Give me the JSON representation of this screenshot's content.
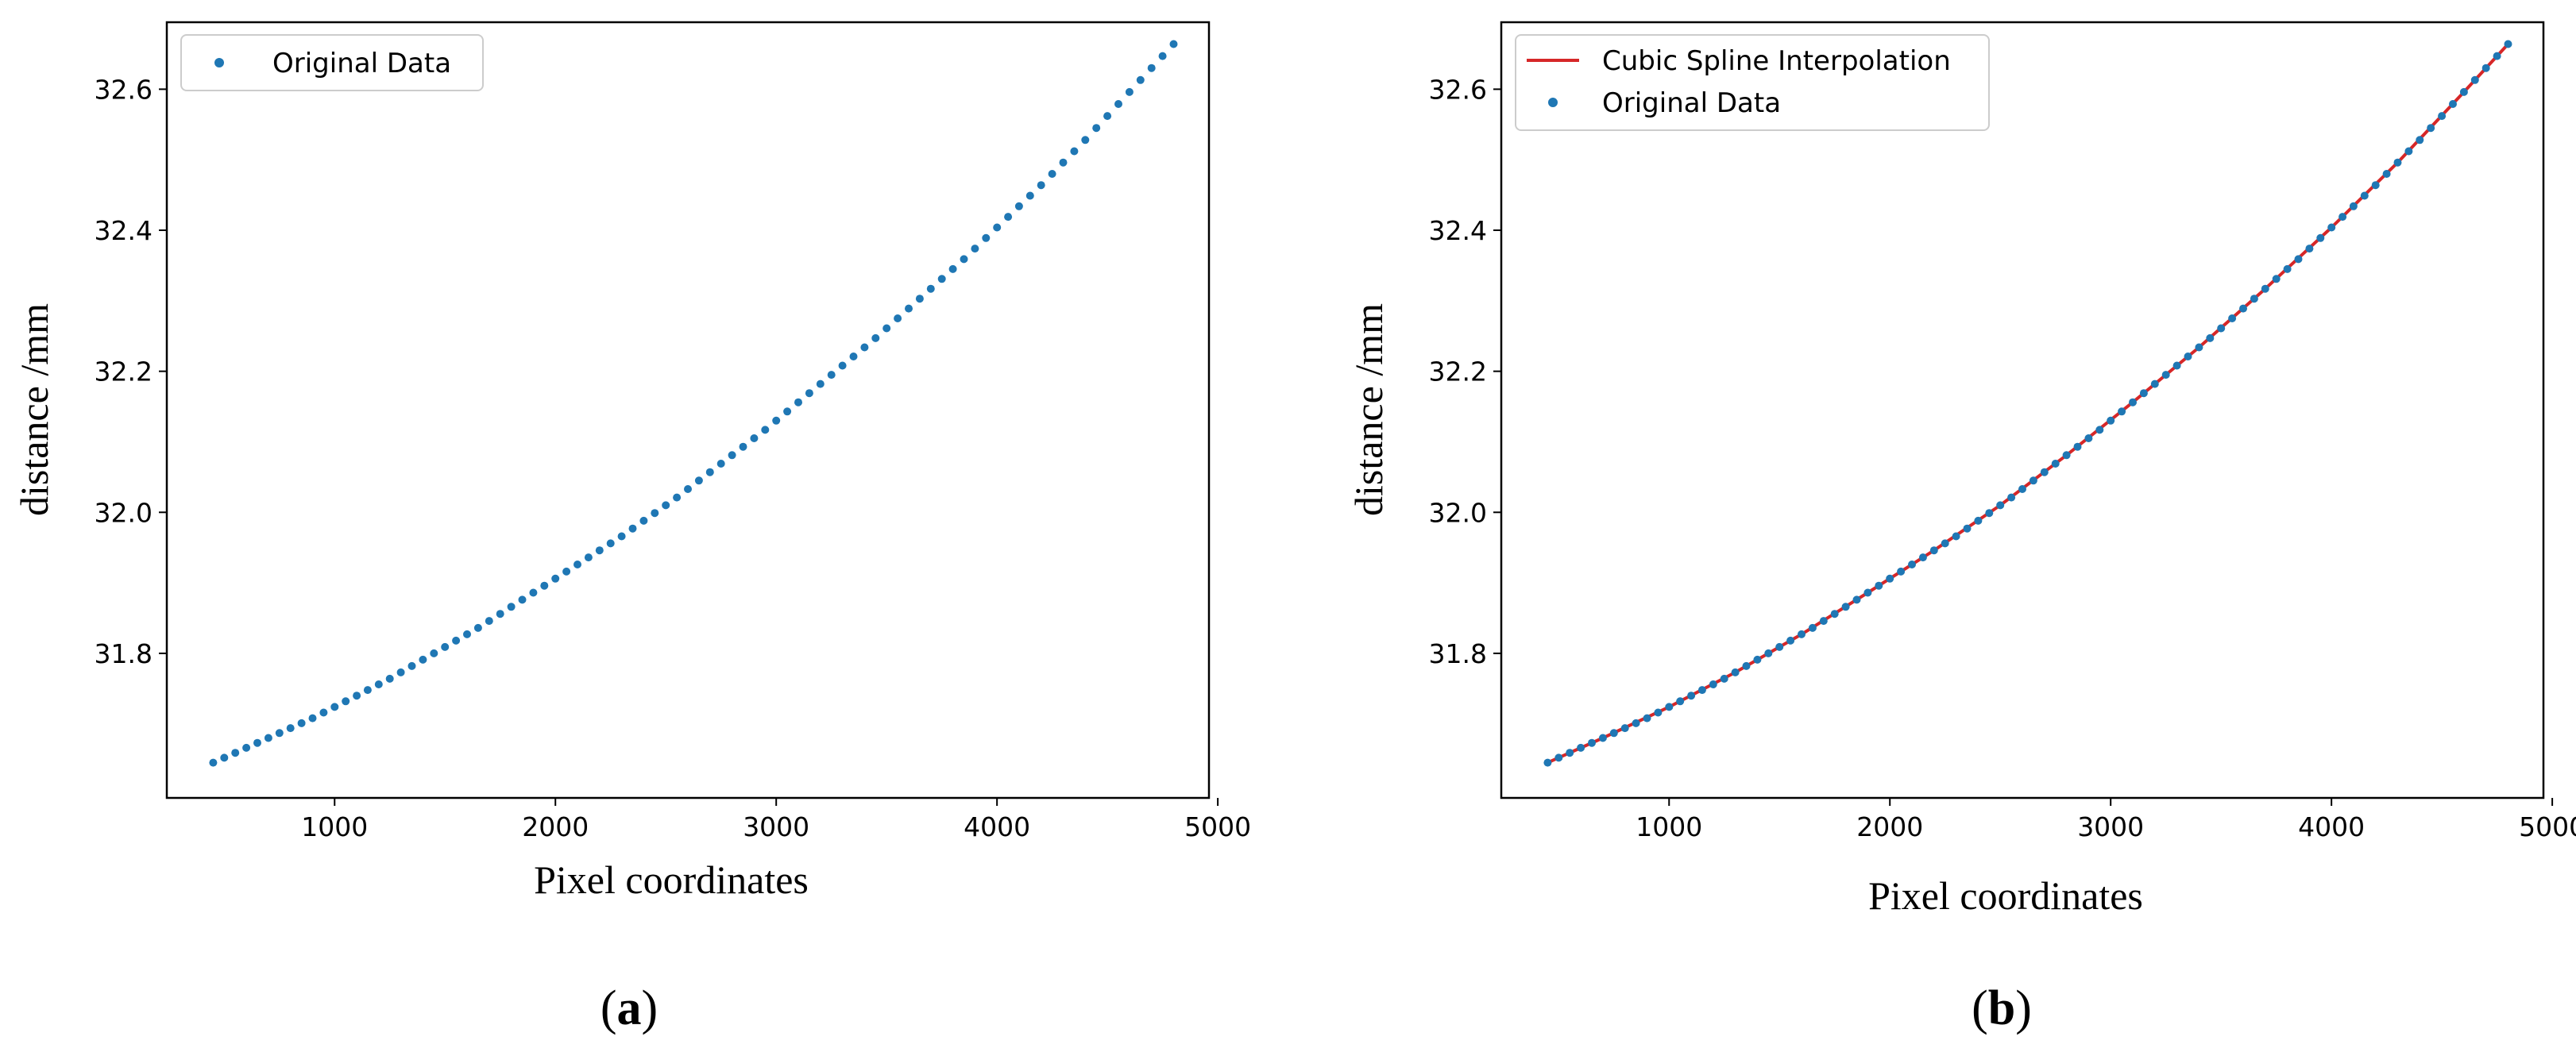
{
  "chart_data": [
    {
      "type": "scatter",
      "panel_label": "a",
      "xlabel": "Pixel coordinates",
      "ylabel": "distance /mm",
      "xlim": [
        240,
        4960
      ],
      "ylim": [
        31.595,
        32.695
      ],
      "xticks": [
        1000,
        2000,
        3000,
        4000,
        5000
      ],
      "yticks": [
        31.8,
        32.0,
        32.2,
        32.4,
        32.6
      ],
      "ytick_labels": [
        "31.8",
        "32.0",
        "32.2",
        "32.4",
        "32.6"
      ],
      "grid": false,
      "legend_position": "top-left",
      "series": [
        {
          "name": "Original Data",
          "kind": "points",
          "color": "#1f77b4",
          "x": [
            450,
            500,
            550,
            600,
            650,
            700,
            750,
            800,
            850,
            900,
            950,
            1000,
            1050,
            1100,
            1150,
            1200,
            1250,
            1300,
            1350,
            1400,
            1450,
            1500,
            1550,
            1600,
            1650,
            1700,
            1750,
            1800,
            1850,
            1900,
            1950,
            2000,
            2050,
            2100,
            2150,
            2200,
            2250,
            2300,
            2350,
            2400,
            2450,
            2500,
            2550,
            2600,
            2650,
            2700,
            2750,
            2800,
            2850,
            2900,
            2950,
            3000,
            3050,
            3100,
            3150,
            3200,
            3250,
            3300,
            3350,
            3400,
            3450,
            3500,
            3550,
            3600,
            3650,
            3700,
            3750,
            3800,
            3850,
            3900,
            3950,
            4000,
            4050,
            4100,
            4150,
            4200,
            4250,
            4300,
            4350,
            4400,
            4450,
            4500,
            4550,
            4600,
            4650,
            4700,
            4750,
            4800
          ],
          "y": [
            31.645,
            31.652,
            31.659,
            31.666,
            31.673,
            31.68,
            31.687,
            31.694,
            31.701,
            31.708,
            31.716,
            31.724,
            31.732,
            31.74,
            31.748,
            31.756,
            31.764,
            31.773,
            31.782,
            31.791,
            31.8,
            31.809,
            31.818,
            31.827,
            31.836,
            31.846,
            31.856,
            31.866,
            31.876,
            31.886,
            31.896,
            31.906,
            31.916,
            31.926,
            31.936,
            31.946,
            31.956,
            31.966,
            31.977,
            31.988,
            31.999,
            32.01,
            32.021,
            32.033,
            32.045,
            32.057,
            32.069,
            32.081,
            32.093,
            32.105,
            32.117,
            32.13,
            32.143,
            32.156,
            32.169,
            32.182,
            32.195,
            32.208,
            32.221,
            32.234,
            32.247,
            32.261,
            32.275,
            32.289,
            32.303,
            32.317,
            32.331,
            32.345,
            32.359,
            32.374,
            32.389,
            32.404,
            32.419,
            32.434,
            32.449,
            32.464,
            32.48,
            32.496,
            32.512,
            32.528,
            32.545,
            32.562,
            32.579,
            32.596,
            32.613,
            32.63,
            32.647,
            32.664
          ]
        }
      ]
    },
    {
      "type": "line",
      "panel_label": "b",
      "xlabel": "Pixel coordinates",
      "ylabel": "distance /mm",
      "xlim": [
        240,
        4960
      ],
      "ylim": [
        31.595,
        32.695
      ],
      "xticks": [
        1000,
        2000,
        3000,
        4000,
        5000
      ],
      "yticks": [
        31.8,
        32.0,
        32.2,
        32.4,
        32.6
      ],
      "ytick_labels": [
        "31.8",
        "32.0",
        "32.2",
        "32.4",
        "32.6"
      ],
      "grid": false,
      "legend_position": "top-left",
      "series": [
        {
          "name": "Cubic Spline Interpolation",
          "kind": "line",
          "color": "#d62728",
          "x": [
            450,
            700,
            1000,
            1300,
            1600,
            1900,
            2200,
            2500,
            2800,
            3100,
            3400,
            3700,
            4000,
            4300,
            4600,
            4800
          ],
          "y": [
            31.645,
            31.68,
            31.724,
            31.773,
            31.827,
            31.886,
            31.946,
            32.01,
            32.081,
            32.156,
            32.234,
            32.317,
            32.404,
            32.496,
            32.596,
            32.664
          ]
        },
        {
          "name": "Original Data",
          "kind": "points",
          "color": "#1f77b4",
          "x": [
            450,
            500,
            550,
            600,
            650,
            700,
            750,
            800,
            850,
            900,
            950,
            1000,
            1050,
            1100,
            1150,
            1200,
            1250,
            1300,
            1350,
            1400,
            1450,
            1500,
            1550,
            1600,
            1650,
            1700,
            1750,
            1800,
            1850,
            1900,
            1950,
            2000,
            2050,
            2100,
            2150,
            2200,
            2250,
            2300,
            2350,
            2400,
            2450,
            2500,
            2550,
            2600,
            2650,
            2700,
            2750,
            2800,
            2850,
            2900,
            2950,
            3000,
            3050,
            3100,
            3150,
            3200,
            3250,
            3300,
            3350,
            3400,
            3450,
            3500,
            3550,
            3600,
            3650,
            3700,
            3750,
            3800,
            3850,
            3900,
            3950,
            4000,
            4050,
            4100,
            4150,
            4200,
            4250,
            4300,
            4350,
            4400,
            4450,
            4500,
            4550,
            4600,
            4650,
            4700,
            4750,
            4800
          ],
          "y": [
            31.645,
            31.652,
            31.659,
            31.666,
            31.673,
            31.68,
            31.687,
            31.694,
            31.701,
            31.708,
            31.716,
            31.724,
            31.732,
            31.74,
            31.748,
            31.756,
            31.764,
            31.773,
            31.782,
            31.791,
            31.8,
            31.809,
            31.818,
            31.827,
            31.836,
            31.846,
            31.856,
            31.866,
            31.876,
            31.886,
            31.896,
            31.906,
            31.916,
            31.926,
            31.936,
            31.946,
            31.956,
            31.966,
            31.977,
            31.988,
            31.999,
            32.01,
            32.021,
            32.033,
            32.045,
            32.057,
            32.069,
            32.081,
            32.093,
            32.105,
            32.117,
            32.13,
            32.143,
            32.156,
            32.169,
            32.182,
            32.195,
            32.208,
            32.221,
            32.234,
            32.247,
            32.261,
            32.275,
            32.289,
            32.303,
            32.317,
            32.331,
            32.345,
            32.359,
            32.374,
            32.389,
            32.404,
            32.419,
            32.434,
            32.449,
            32.464,
            32.48,
            32.496,
            32.512,
            32.528,
            32.545,
            32.562,
            32.579,
            32.596,
            32.613,
            32.63,
            32.647,
            32.664
          ]
        }
      ]
    }
  ]
}
